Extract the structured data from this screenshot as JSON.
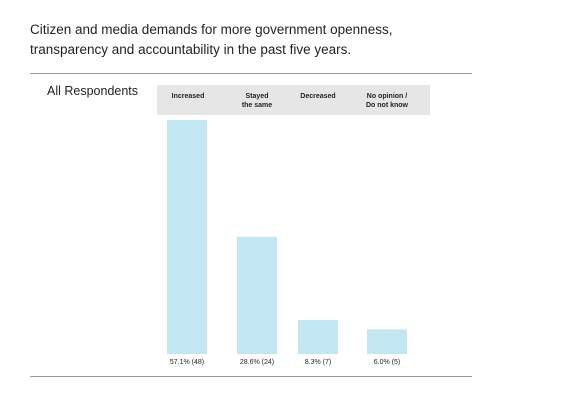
{
  "title_lines": [
    "Citizen and media demands for more government openness,",
    "transparency and accountability in the past five years."
  ],
  "group_label": "All Respondents",
  "colors": {
    "bar": "#c2e6f2",
    "header_band": "#e6e6e6",
    "rule": "#9a9a9a"
  },
  "chart_data": {
    "type": "bar",
    "title": "Citizen and media demands for more government openness, transparency and accountability in the past five years.",
    "group": "All Respondents",
    "categories": [
      "Increased",
      "Stayed\nthe same",
      "Decreased",
      "No opinion /\nDo not know"
    ],
    "values": [
      57.1,
      28.6,
      8.3,
      6.0
    ],
    "counts": [
      48,
      24,
      7,
      5
    ],
    "value_labels": [
      "57.1% (48)",
      "28.6% (24)",
      "8.3% (7)",
      "6.0% (5)"
    ],
    "unit": "%",
    "ylim": [
      0,
      57.1
    ],
    "grid": false,
    "legend": "none"
  }
}
